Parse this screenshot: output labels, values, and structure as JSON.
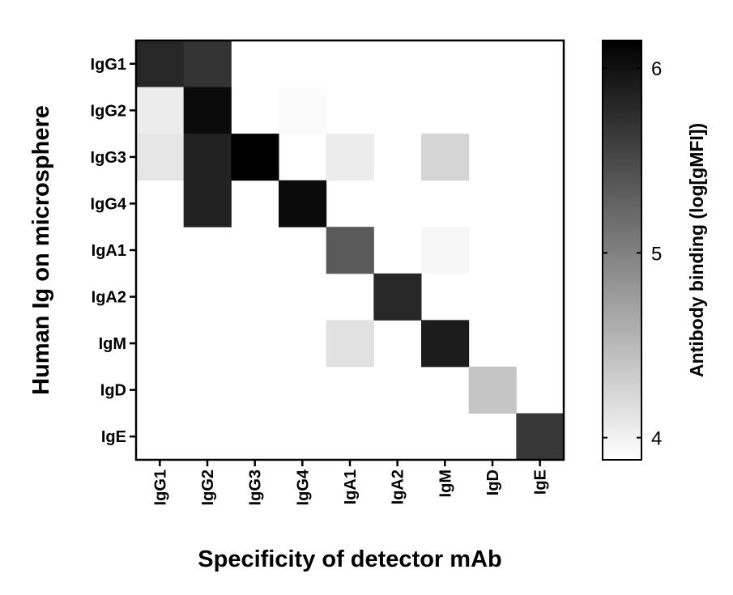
{
  "chart_data": {
    "type": "heatmap",
    "xlabel": "Specificity of detector mAb",
    "ylabel": "Human Ig on microsphere",
    "x_categories": [
      "IgG1",
      "IgG2",
      "IgG3",
      "IgG4",
      "IgA1",
      "IgA2",
      "IgM",
      "IgD",
      "IgE"
    ],
    "y_categories": [
      "IgG1",
      "IgG2",
      "IgG3",
      "IgG4",
      "IgA1",
      "IgA2",
      "IgM",
      "IgD",
      "IgE"
    ],
    "values": [
      [
        5.8,
        5.7,
        null,
        null,
        null,
        null,
        null,
        null,
        null
      ],
      [
        4.05,
        6.05,
        null,
        3.92,
        null,
        null,
        null,
        null,
        null
      ],
      [
        4.1,
        5.85,
        6.15,
        null,
        4.05,
        null,
        4.25,
        null,
        null
      ],
      [
        null,
        5.85,
        null,
        6.05,
        null,
        null,
        null,
        null,
        null
      ],
      [
        null,
        null,
        null,
        null,
        5.35,
        null,
        3.95,
        null,
        null
      ],
      [
        null,
        null,
        null,
        null,
        null,
        5.8,
        null,
        null,
        null
      ],
      [
        null,
        null,
        null,
        null,
        4.15,
        null,
        5.9,
        null,
        null
      ],
      [
        null,
        null,
        null,
        null,
        null,
        null,
        null,
        4.4,
        null
      ],
      [
        null,
        null,
        null,
        null,
        null,
        null,
        null,
        null,
        5.65
      ]
    ],
    "colorbar": {
      "title": "Antibody binding (log[gMFI])",
      "range": [
        3.88,
        6.15
      ],
      "ticks": [
        4,
        5,
        6
      ],
      "colors": [
        "#ffffff",
        "#000000"
      ]
    }
  }
}
